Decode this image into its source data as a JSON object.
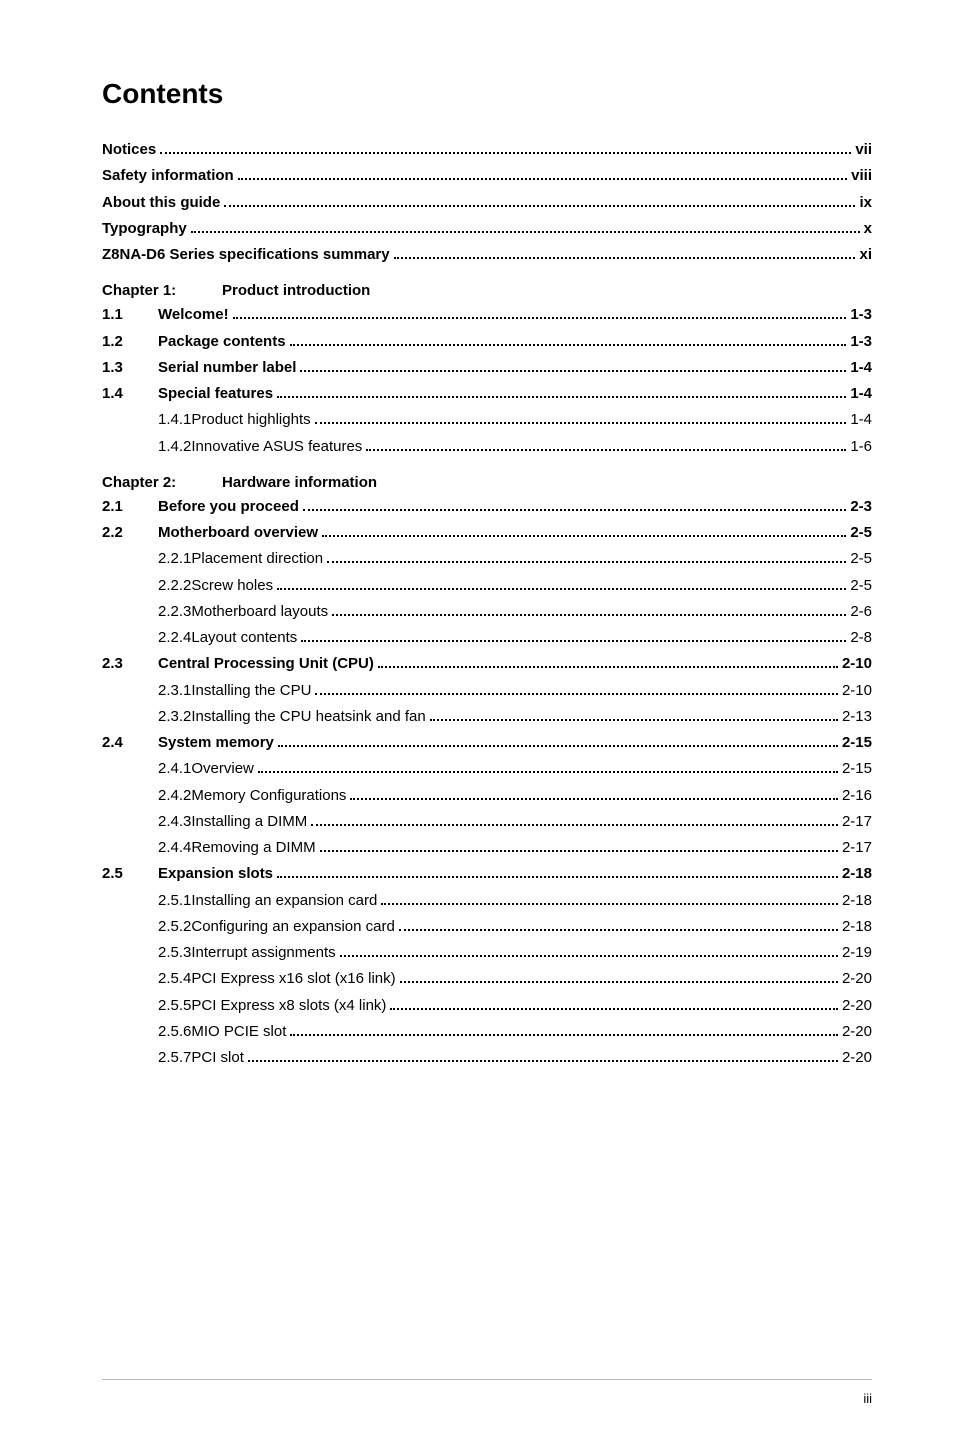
{
  "title": "Contents",
  "footer_page": "iii",
  "style": {
    "page_bg": "#ffffff",
    "text_color": "#000000",
    "rule_color": "#b8b8b8",
    "dot_color": "#000000",
    "title_fontsize": 28,
    "body_fontsize": 15,
    "footer_fontsize": 13
  },
  "front": [
    {
      "label": "Notices",
      "page": "vii"
    },
    {
      "label": "Safety information",
      "page": "viii"
    },
    {
      "label": "About this guide",
      "page": "ix"
    },
    {
      "label": "Typography",
      "page": "x"
    },
    {
      "label": "Z8NA-D6 Series specifications summary",
      "page": "xi"
    }
  ],
  "chapters": [
    {
      "label": "Chapter 1:",
      "title": "Product introduction",
      "items": [
        {
          "num": "1.1",
          "label": "Welcome!",
          "page": "1-3",
          "bold": true
        },
        {
          "num": "1.2",
          "label": "Package contents",
          "page": "1-3",
          "bold": true
        },
        {
          "num": "1.3",
          "label": "Serial number label",
          "page": "1-4",
          "bold": true
        },
        {
          "num": "1.4",
          "label": "Special features",
          "page": "1-4",
          "bold": true
        },
        {
          "num": "1.4.1",
          "label": "Product highlights",
          "page": "1-4",
          "sub": true
        },
        {
          "num": "1.4.2",
          "label": "Innovative ASUS features",
          "page": "1-6",
          "sub": true
        }
      ]
    },
    {
      "label": "Chapter 2:",
      "title": "Hardware information",
      "items": [
        {
          "num": "2.1",
          "label": "Before you proceed",
          "page": "2-3",
          "bold": true
        },
        {
          "num": "2.2",
          "label": "Motherboard overview",
          "page": "2-5",
          "bold": true
        },
        {
          "num": "2.2.1",
          "label": "Placement direction",
          "page": "2-5",
          "sub": true
        },
        {
          "num": "2.2.2",
          "label": "Screw holes",
          "page": "2-5",
          "sub": true
        },
        {
          "num": "2.2.3",
          "label": "Motherboard layouts",
          "page": "2-6",
          "sub": true
        },
        {
          "num": "2.2.4",
          "label": "Layout contents",
          "page": "2-8",
          "sub": true
        },
        {
          "num": "2.3",
          "label": "Central Processing Unit (CPU)",
          "page": "2-10",
          "bold": true
        },
        {
          "num": "2.3.1",
          "label": "Installing the CPU",
          "page": "2-10",
          "sub": true
        },
        {
          "num": "2.3.2",
          "label": "Installing the CPU heatsink and fan",
          "page": "2-13",
          "sub": true
        },
        {
          "num": "2.4",
          "label": "System memory",
          "page": "2-15",
          "bold": true
        },
        {
          "num": "2.4.1",
          "label": "Overview",
          "page": "2-15",
          "sub": true
        },
        {
          "num": "2.4.2",
          "label": "Memory Configurations",
          "page": "2-16",
          "sub": true
        },
        {
          "num": "2.4.3",
          "label": "Installing a DIMM",
          "page": "2-17",
          "sub": true
        },
        {
          "num": "2.4.4",
          "label": "Removing a DIMM",
          "page": "2-17",
          "sub": true
        },
        {
          "num": "2.5",
          "label": "Expansion slots",
          "page": "2-18",
          "bold": true
        },
        {
          "num": "2.5.1",
          "label": "Installing an expansion card",
          "page": "2-18",
          "sub": true
        },
        {
          "num": "2.5.2",
          "label": "Configuring an expansion card",
          "page": "2-18",
          "sub": true
        },
        {
          "num": "2.5.3",
          "label": "Interrupt assignments",
          "page": "2-19",
          "sub": true
        },
        {
          "num": "2.5.4",
          "label": "PCI Express x16 slot (x16 link)",
          "page": "2-20",
          "sub": true
        },
        {
          "num": "2.5.5",
          "label": "PCI Express x8 slots (x4 link)",
          "page": "2-20",
          "sub": true
        },
        {
          "num": "2.5.6",
          "label": "MIO PCIE slot",
          "page": "2-20",
          "sub": true
        },
        {
          "num": "2.5.7",
          "label": "PCI slot",
          "page": "2-20",
          "sub": true
        }
      ]
    }
  ]
}
